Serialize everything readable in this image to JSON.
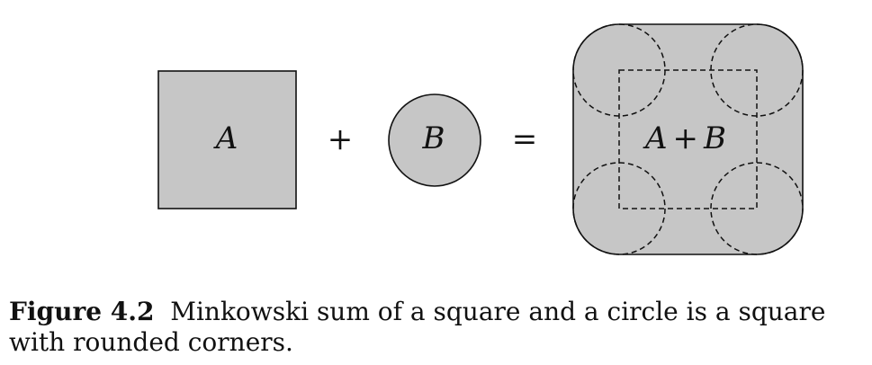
{
  "figure": {
    "fill_color": "#c6c6c6",
    "stroke_color": "#111111",
    "operand_a_label": "A",
    "plus_symbol": "+",
    "operand_b_label": "B",
    "equals_symbol": "=",
    "sum_label_a": "A",
    "sum_label_plus": "+",
    "sum_label_b": "B"
  },
  "caption": {
    "number": "Figure 4.2",
    "text": "Minkowski sum of a square and a circle is a square with rounded corners."
  }
}
